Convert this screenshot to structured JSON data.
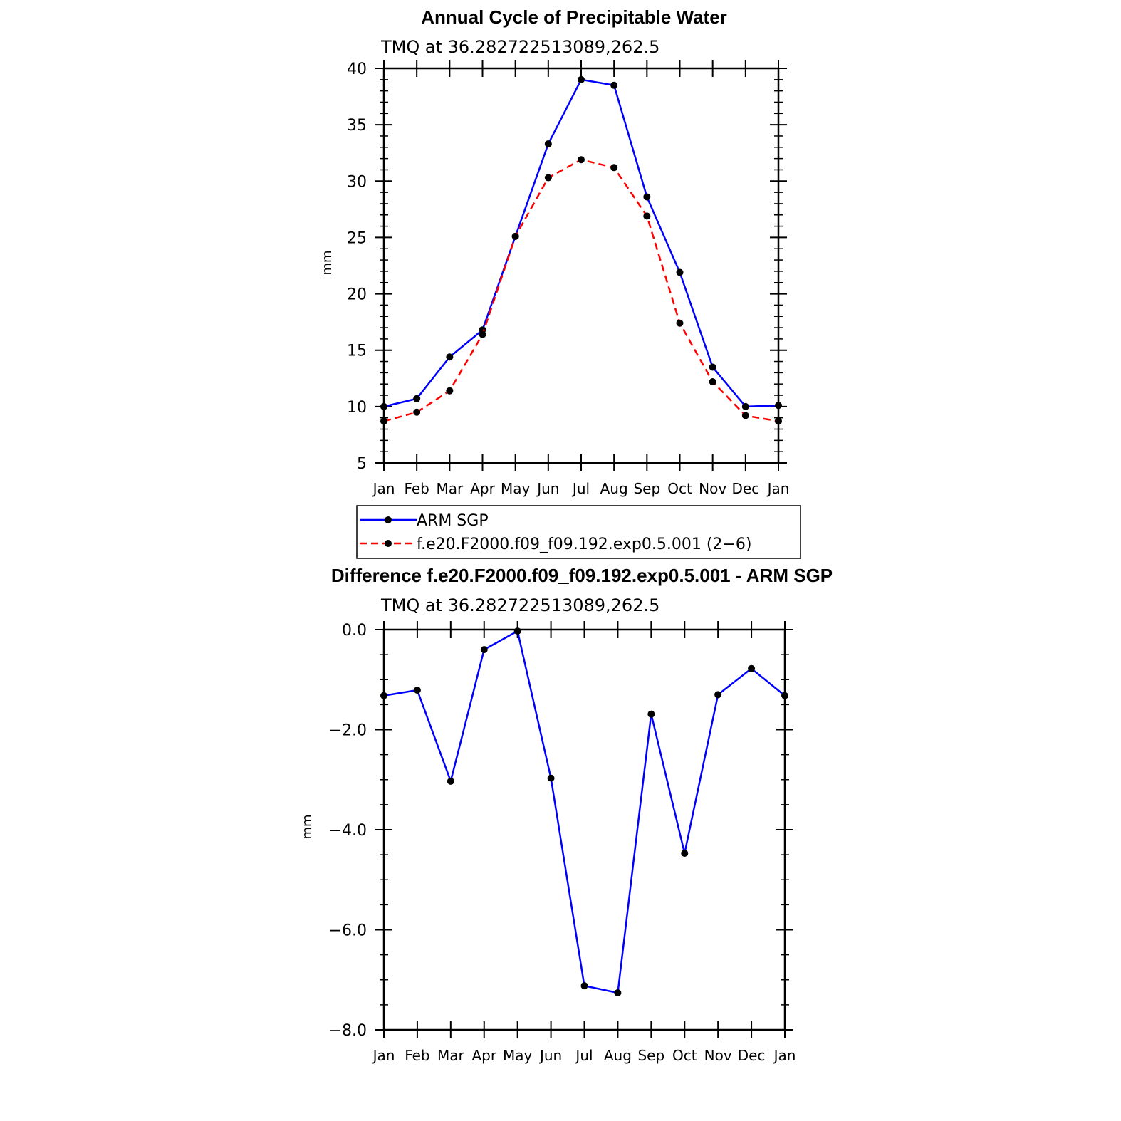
{
  "colors": {
    "obs": "#0000ff",
    "model": "#ff0000",
    "marker": "#000000"
  },
  "chart_data": [
    {
      "type": "line",
      "title": "Annual Cycle of Precipitable Water",
      "subtitle": "TMQ at 36.282722513089,262.5",
      "ylabel": "mm",
      "xlabel": "",
      "categories": [
        "Jan",
        "Feb",
        "Mar",
        "Apr",
        "May",
        "Jun",
        "Jul",
        "Aug",
        "Sep",
        "Oct",
        "Nov",
        "Dec",
        "Jan"
      ],
      "ylim": [
        5,
        40
      ],
      "yticks": [
        5,
        10,
        15,
        20,
        25,
        30,
        35,
        40
      ],
      "ytick_labels": [
        "5",
        "10",
        "15",
        "20",
        "25",
        "30",
        "35",
        "40"
      ],
      "series": [
        {
          "name": "ARM SGP",
          "style": "solid",
          "values": [
            10.0,
            10.7,
            14.4,
            16.8,
            25.1,
            33.3,
            39.0,
            38.5,
            28.6,
            21.9,
            13.5,
            10.0,
            10.1
          ]
        },
        {
          "name": "f.e20.F2000.f09_f09.192.exp0.5.001 (2−6)",
          "style": "dashed",
          "values": [
            8.7,
            9.5,
            11.4,
            16.4,
            25.1,
            30.3,
            31.9,
            31.2,
            26.9,
            17.4,
            12.2,
            9.2,
            8.7
          ]
        }
      ],
      "legend": [
        "ARM SGP",
        "f.e20.F2000.f09_f09.192.exp0.5.001 (2−6)"
      ]
    },
    {
      "type": "line",
      "title": "Difference f.e20.F2000.f09_f09.192.exp0.5.001 - ARM SGP",
      "subtitle": "TMQ at 36.282722513089,262.5",
      "ylabel": "mm",
      "xlabel": "",
      "categories": [
        "Jan",
        "Feb",
        "Mar",
        "Apr",
        "May",
        "Jun",
        "Jul",
        "Aug",
        "Sep",
        "Oct",
        "Nov",
        "Dec",
        "Jan"
      ],
      "ylim": [
        -8.0,
        0.0
      ],
      "yticks": [
        0.0,
        -2.0,
        -4.0,
        -6.0,
        -8.0
      ],
      "ytick_labels": [
        "0.0",
        "−2.0",
        "−4.0",
        "−6.0",
        "−8.0"
      ],
      "series": [
        {
          "name": "Difference",
          "style": "solid",
          "values": [
            -1.32,
            -1.21,
            -3.03,
            -0.4,
            -0.03,
            -2.97,
            -7.12,
            -7.26,
            -1.69,
            -4.47,
            -1.3,
            -0.78,
            -1.32
          ]
        }
      ]
    }
  ]
}
